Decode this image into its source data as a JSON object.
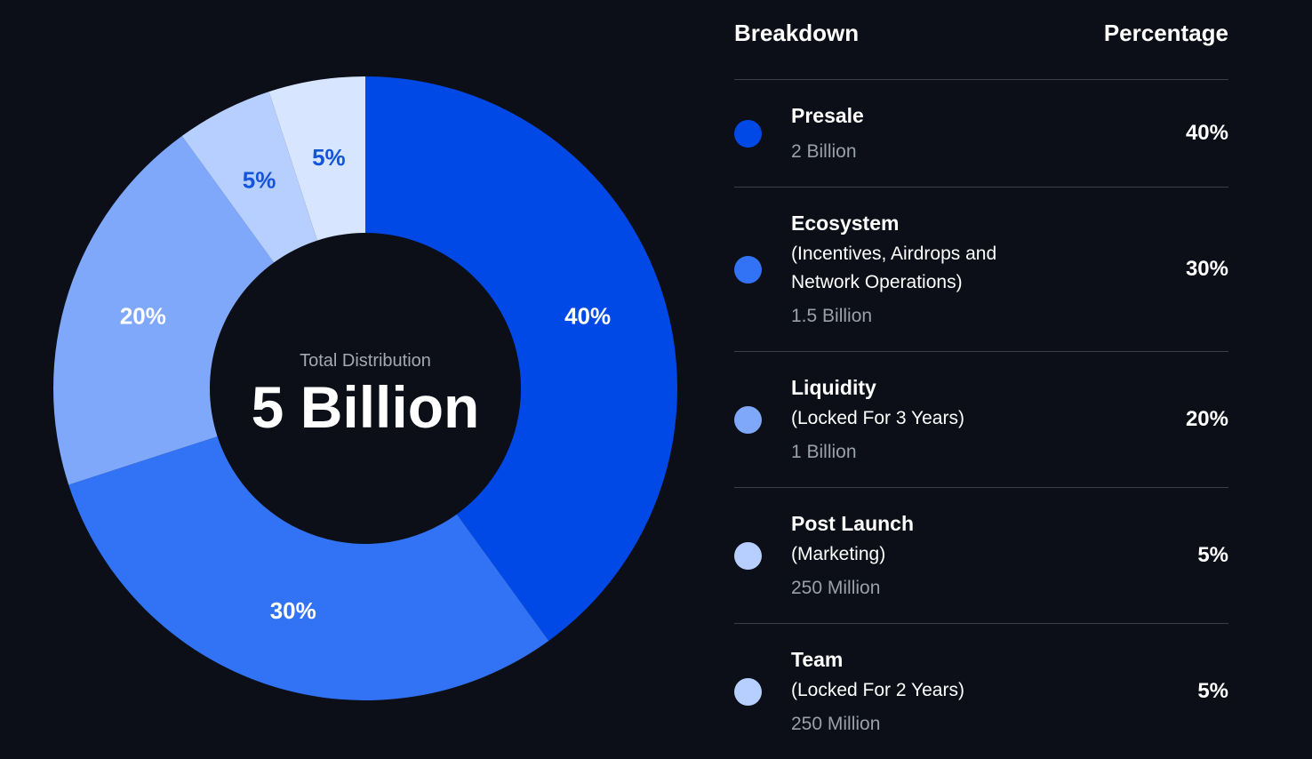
{
  "chart_data": {
    "type": "pie",
    "style": "donut",
    "center_label": "Total Distribution",
    "center_value": "5 Billion",
    "slices": [
      {
        "label": "Presale",
        "value": 40,
        "display": "40%",
        "color": "#0049e6",
        "label_color": "#ffffff"
      },
      {
        "label": "Ecosystem",
        "value": 30,
        "display": "30%",
        "color": "#3273f5",
        "label_color": "#ffffff"
      },
      {
        "label": "Liquidity",
        "value": 20,
        "display": "20%",
        "color": "#7fa8fb",
        "label_color": "#ffffff"
      },
      {
        "label": "Post Launch",
        "value": 5,
        "display": "5%",
        "color": "#b7cfff",
        "label_color": "#1454dc"
      },
      {
        "label": "Team",
        "value": 5,
        "display": "5%",
        "color": "#d7e5ff",
        "label_color": "#1454dc"
      }
    ]
  },
  "legend": {
    "header_left": "Breakdown",
    "header_right": "Percentage",
    "rows": [
      {
        "title": "Presale",
        "desc": [],
        "amount": "2 Billion",
        "pct": "40%",
        "color": "#0049e6"
      },
      {
        "title": "Ecosystem",
        "desc": [
          "(Incentives, Airdrops and",
          "Network Operations)"
        ],
        "amount": "1.5 Billion",
        "pct": "30%",
        "color": "#3273f5"
      },
      {
        "title": "Liquidity",
        "desc": [
          "(Locked For 3 Years)"
        ],
        "amount": "1 Billion",
        "pct": "20%",
        "color": "#7fa8fb"
      },
      {
        "title": "Post Launch",
        "desc": [
          "(Marketing)"
        ],
        "amount": "250 Million",
        "pct": "5%",
        "color": "#b7cfff"
      },
      {
        "title": "Team",
        "desc": [
          "(Locked For 2 Years)"
        ],
        "amount": "250 Million",
        "pct": "5%",
        "color": "#b7cfff"
      }
    ]
  }
}
